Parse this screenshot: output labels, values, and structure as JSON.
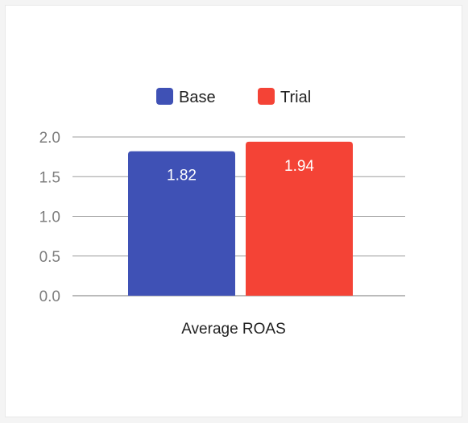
{
  "chart_data": {
    "type": "bar",
    "categories": [
      "Average ROAS"
    ],
    "series": [
      {
        "name": "Base",
        "values": [
          1.82
        ],
        "color": "#3f51b5"
      },
      {
        "name": "Trial",
        "values": [
          1.94
        ],
        "color": "#f44336"
      }
    ],
    "ylim": [
      0,
      2.0
    ],
    "yticks": [
      "0.0",
      "0.5",
      "1.0",
      "1.5",
      "2.0"
    ],
    "ytick_values": [
      0,
      0.5,
      1.0,
      1.5,
      2.0
    ],
    "data_labels": [
      "1.82",
      "1.94"
    ],
    "grid": true,
    "legend_position": "top-center",
    "gridline_color": "#9e9e9e",
    "axis_line_color": "#777777"
  }
}
